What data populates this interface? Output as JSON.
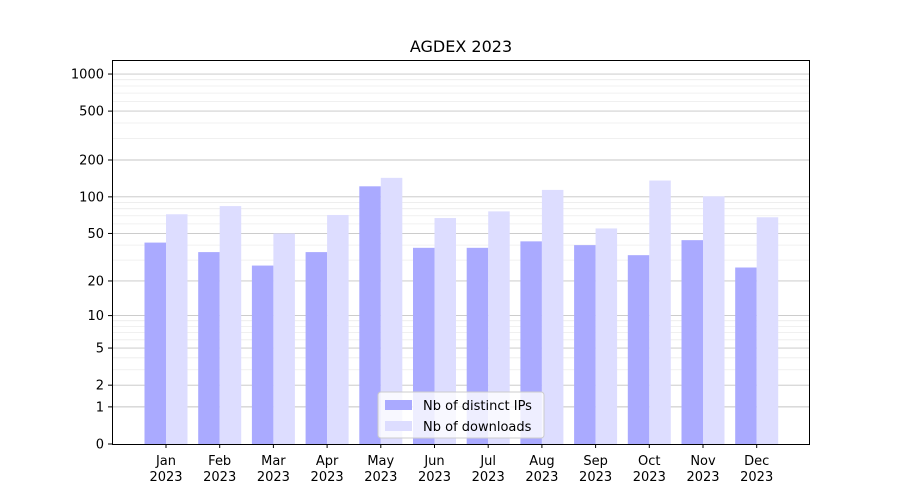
{
  "chart_data": {
    "type": "bar",
    "title": "AGDEX 2023",
    "categories": [
      "Jan\n2023",
      "Feb\n2023",
      "Mar\n2023",
      "Apr\n2023",
      "May\n2023",
      "Jun\n2023",
      "Jul\n2023",
      "Aug\n2023",
      "Sep\n2023",
      "Oct\n2023",
      "Nov\n2023",
      "Dec\n2023"
    ],
    "series": [
      {
        "name": "Nb of distinct IPs",
        "color": "#aaaaff",
        "values": [
          42,
          35,
          27,
          35,
          122,
          38,
          38,
          43,
          40,
          33,
          44,
          26
        ]
      },
      {
        "name": "Nb of downloads",
        "color": "#ddddff",
        "values": [
          72,
          84,
          50,
          71,
          143,
          67,
          76,
          114,
          55,
          136,
          101,
          68
        ]
      }
    ],
    "yscale": "symlog",
    "ylim": [
      0,
      1300
    ],
    "yticks": [
      0,
      1,
      2,
      5,
      10,
      20,
      50,
      100,
      200,
      500,
      1000
    ],
    "xlabel": "",
    "ylabel": "",
    "grid": true,
    "legend_position": "lower-center"
  }
}
